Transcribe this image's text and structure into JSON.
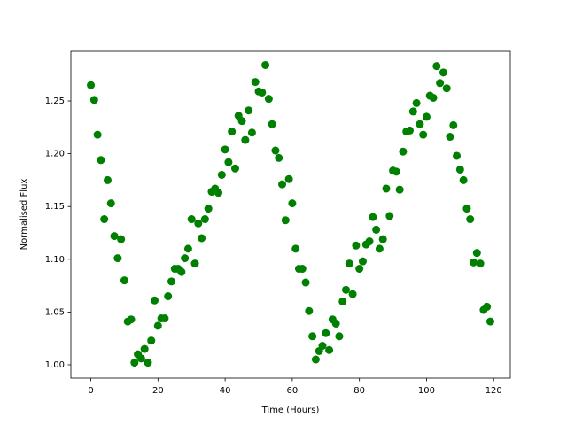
{
  "chart_data": {
    "type": "scatter",
    "xlabel": "Time (Hours)",
    "ylabel": "Normalised Flux",
    "color": "#008000",
    "grid": false,
    "x": [
      0,
      1,
      2,
      3,
      4,
      5,
      6,
      7,
      8,
      9,
      10,
      11,
      12,
      13,
      14,
      15,
      16,
      17,
      18,
      19,
      20,
      21,
      22,
      23,
      24,
      25,
      26,
      27,
      28,
      29,
      30,
      31,
      32,
      33,
      34,
      35,
      36,
      37,
      38,
      39,
      40,
      41,
      42,
      43,
      44,
      45,
      46,
      47,
      48,
      49,
      50,
      51,
      52,
      53,
      54,
      55,
      56,
      57,
      58,
      59,
      60,
      61,
      62,
      63,
      64,
      65,
      66,
      67,
      68,
      69,
      70,
      71,
      72,
      73,
      74,
      75,
      76,
      77,
      78,
      79,
      80,
      81,
      82,
      83,
      84,
      85,
      86,
      87,
      88,
      89,
      90,
      91,
      92,
      93,
      94,
      95,
      96,
      97,
      98,
      99,
      100,
      101,
      102,
      103,
      104,
      105,
      106,
      107,
      108,
      109,
      110,
      111,
      112,
      113,
      114,
      115,
      116,
      117,
      118,
      119
    ],
    "values": [
      1.265,
      1.251,
      1.218,
      1.194,
      1.138,
      1.175,
      1.153,
      1.122,
      1.101,
      1.119,
      1.08,
      1.041,
      1.043,
      1.002,
      1.01,
      1.006,
      1.015,
      1.002,
      1.023,
      1.061,
      1.037,
      1.044,
      1.044,
      1.065,
      1.079,
      1.091,
      1.091,
      1.088,
      1.101,
      1.11,
      1.138,
      1.096,
      1.134,
      1.12,
      1.138,
      1.148,
      1.164,
      1.167,
      1.163,
      1.18,
      1.204,
      1.192,
      1.221,
      1.186,
      1.236,
      1.231,
      1.213,
      1.241,
      1.22,
      1.268,
      1.259,
      1.258,
      1.284,
      1.252,
      1.228,
      1.203,
      1.196,
      1.171,
      1.137,
      1.176,
      1.153,
      1.11,
      1.091,
      1.091,
      1.078,
      1.051,
      1.027,
      1.005,
      1.013,
      1.018,
      1.03,
      1.014,
      1.043,
      1.039,
      1.027,
      1.06,
      1.071,
      1.096,
      1.067,
      1.113,
      1.091,
      1.098,
      1.114,
      1.117,
      1.14,
      1.128,
      1.11,
      1.119,
      1.167,
      1.141,
      1.184,
      1.183,
      1.166,
      1.202,
      1.221,
      1.222,
      1.24,
      1.248,
      1.228,
      1.218,
      1.235,
      1.255,
      1.253,
      1.283,
      1.267,
      1.277,
      1.262,
      1.216,
      1.227,
      1.198,
      1.185,
      1.175,
      1.148,
      1.138,
      1.097,
      1.106,
      1.096,
      1.052,
      1.055,
      1.041
    ],
    "xlim": [
      -5.95,
      124.95
    ],
    "xticks": [
      0,
      20,
      40,
      60,
      80,
      100,
      120
    ],
    "ylim": [
      0.9874,
      1.297
    ],
    "yticks": [
      {
        "value": 1.0,
        "label": "1.00"
      },
      {
        "value": 1.05,
        "label": "1.05"
      },
      {
        "value": 1.1,
        "label": "1.10"
      },
      {
        "value": 1.15,
        "label": "1.15"
      },
      {
        "value": 1.2,
        "label": "1.20"
      },
      {
        "value": 1.25,
        "label": "1.25"
      }
    ]
  }
}
